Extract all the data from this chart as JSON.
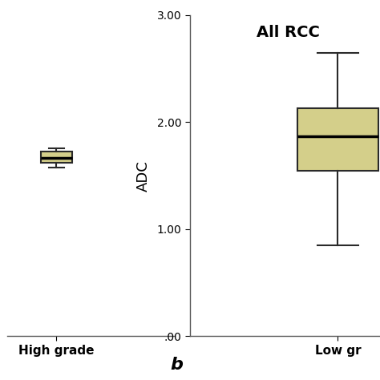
{
  "title_right": "All RCC",
  "ylabel": "ADC",
  "xlabel_left": "High grade",
  "xlabel_right": "Low gr",
  "letter": "b",
  "ylim": [
    0.0,
    3.0
  ],
  "yticks": [
    0.0,
    1.0,
    2.0,
    3.0
  ],
  "ytick_labels": [
    ".00",
    "1.00",
    "2.00",
    "3.00"
  ],
  "box_color": "#d4cf8a",
  "box_edge_color": "#2a2a2a",
  "median_color": "#000000",
  "whisker_color": "#2a2a2a",
  "cap_color": "#2a2a2a",
  "high_grade": {
    "whislo": 1.575,
    "q1": 1.625,
    "med": 1.665,
    "q3": 1.73,
    "whishi": 1.755
  },
  "low_grade": {
    "whislo": 0.85,
    "q1": 1.55,
    "med": 1.87,
    "q3": 2.13,
    "whishi": 2.65
  },
  "fig_width": 4.74,
  "fig_height": 4.74,
  "background_color": "#ffffff",
  "spine_color": "#555555"
}
